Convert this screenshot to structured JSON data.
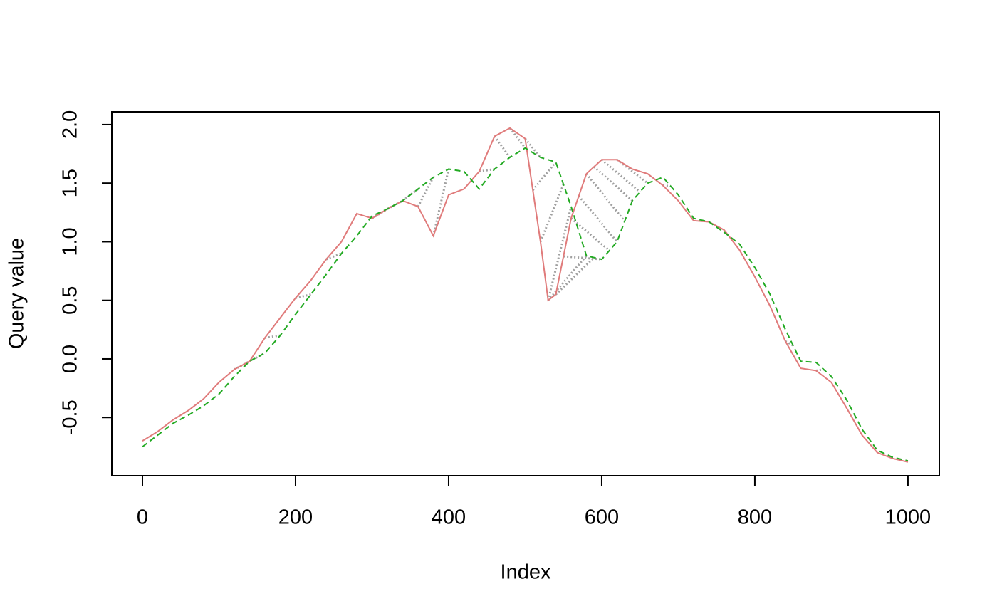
{
  "chart_data": {
    "type": "line",
    "x_label": "Index",
    "y_label": "Query value",
    "x": [
      0,
      20,
      40,
      60,
      80,
      100,
      120,
      140,
      160,
      180,
      200,
      220,
      240,
      260,
      280,
      300,
      320,
      340,
      360,
      380,
      400,
      420,
      440,
      460,
      480,
      500,
      520,
      530,
      540,
      560,
      580,
      600,
      620,
      640,
      660,
      680,
      700,
      720,
      740,
      760,
      780,
      800,
      820,
      840,
      860,
      880,
      900,
      920,
      940,
      960,
      980,
      1000
    ],
    "series": [
      {
        "color": "#e07b7b",
        "dash": "none",
        "values": [
          -0.7,
          -0.62,
          -0.52,
          -0.44,
          -0.34,
          -0.2,
          -0.09,
          -0.02,
          0.18,
          0.35,
          0.52,
          0.67,
          0.85,
          1.0,
          1.24,
          1.2,
          1.28,
          1.35,
          1.3,
          1.05,
          1.4,
          1.45,
          1.6,
          1.9,
          1.97,
          1.88,
          1.0,
          0.5,
          0.55,
          1.2,
          1.58,
          1.7,
          1.7,
          1.62,
          1.58,
          1.48,
          1.35,
          1.18,
          1.17,
          1.1,
          0.93,
          0.7,
          0.45,
          0.15,
          -0.08,
          -0.1,
          -0.2,
          -0.42,
          -0.65,
          -0.8,
          -0.85,
          -0.88
        ]
      },
      {
        "color": "#22aa22",
        "dash": "8 5",
        "values": [
          -0.75,
          -0.65,
          -0.55,
          -0.48,
          -0.4,
          -0.3,
          -0.15,
          -0.02,
          0.05,
          0.2,
          0.38,
          0.55,
          0.72,
          0.9,
          1.05,
          1.22,
          1.28,
          1.35,
          1.45,
          1.55,
          1.62,
          1.6,
          1.45,
          1.62,
          1.72,
          1.8,
          1.72,
          1.7,
          1.68,
          1.3,
          0.88,
          0.85,
          1.0,
          1.35,
          1.5,
          1.55,
          1.4,
          1.2,
          1.17,
          1.08,
          0.98,
          0.78,
          0.55,
          0.25,
          -0.02,
          -0.03,
          -0.15,
          -0.35,
          -0.6,
          -0.78,
          -0.84,
          -0.87
        ]
      }
    ],
    "alignment_color": "#a0a0a0",
    "alignment": [
      [
        120,
        140
      ],
      [
        140,
        160
      ],
      [
        160,
        180
      ],
      [
        200,
        220
      ],
      [
        240,
        260
      ],
      [
        300,
        320
      ],
      [
        320,
        340
      ],
      [
        340,
        360
      ],
      [
        360,
        380
      ],
      [
        380,
        400
      ],
      [
        440,
        460
      ],
      [
        460,
        480
      ],
      [
        480,
        500
      ],
      [
        500,
        520
      ],
      [
        510,
        540
      ],
      [
        520,
        550
      ],
      [
        530,
        560
      ],
      [
        530,
        580
      ],
      [
        540,
        590
      ],
      [
        550,
        600
      ],
      [
        560,
        610
      ],
      [
        570,
        620
      ],
      [
        580,
        630
      ],
      [
        590,
        640
      ],
      [
        600,
        650
      ],
      [
        620,
        660
      ],
      [
        680,
        690
      ],
      [
        840,
        850
      ],
      [
        880,
        890
      ]
    ],
    "xlim": [
      -40,
      1041
    ],
    "ylim": [
      -0.997,
      2.109
    ],
    "xticks": [
      0,
      200,
      400,
      600,
      800,
      1000
    ],
    "yticks": [
      -0.5,
      {
        "value": 0,
        "label": "0.0"
      },
      0.5,
      {
        "value": 1,
        "label": "1.0"
      },
      1.5,
      {
        "value": 2,
        "label": "2.0"
      }
    ]
  }
}
